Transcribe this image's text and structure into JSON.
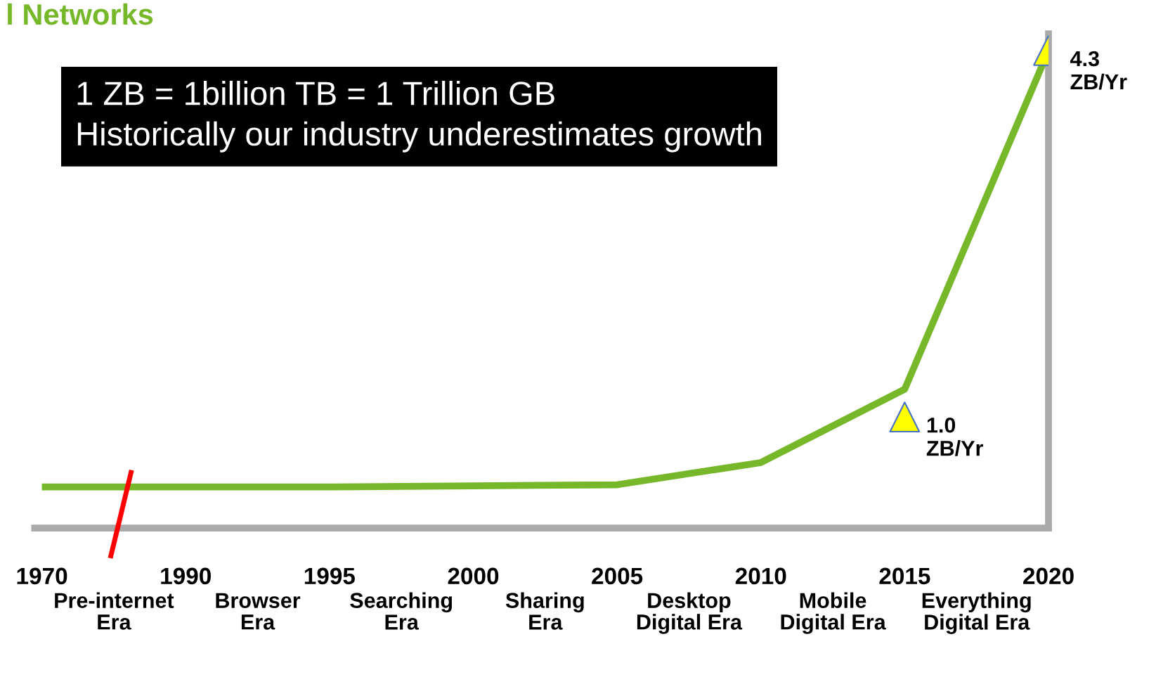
{
  "chart_data": {
    "type": "line",
    "title": "l Networks",
    "ylim": [
      0,
      4.45
    ],
    "legend": false,
    "grid": false,
    "tick_labels": "x",
    "categories": [
      "1970",
      "1990",
      "1995",
      "2000",
      "2005",
      "2010",
      "2015",
      "2020"
    ],
    "series": [
      {
        "color": "#76b82a",
        "values": [
          0.37,
          0.37,
          0.37,
          0.38,
          0.39,
          0.59,
          1.25,
          4.3
        ],
        "marker": "none"
      },
      {
        "type": "scatter",
        "color": "#ffff00",
        "values": [
          null,
          null,
          null,
          null,
          null,
          null,
          1.0,
          4.3
        ],
        "marker": "triangle",
        "value_labels": [
          null,
          null,
          null,
          null,
          null,
          null,
          "1.0\nZB/Yr",
          "4.3\nZB/Yr"
        ]
      }
    ],
    "annotations": [
      "1 ZB = 1billion TB = 1 Trillion GB\nHistorically our industry underestimates growth",
      "Pre-internet\nEra",
      "Browser\nEra",
      "Searching\nEra",
      "Sharing\nEra",
      "Desktop\nDigital Era",
      "Mobile\nDigital Era",
      "Everything\nDigital Era"
    ]
  }
}
